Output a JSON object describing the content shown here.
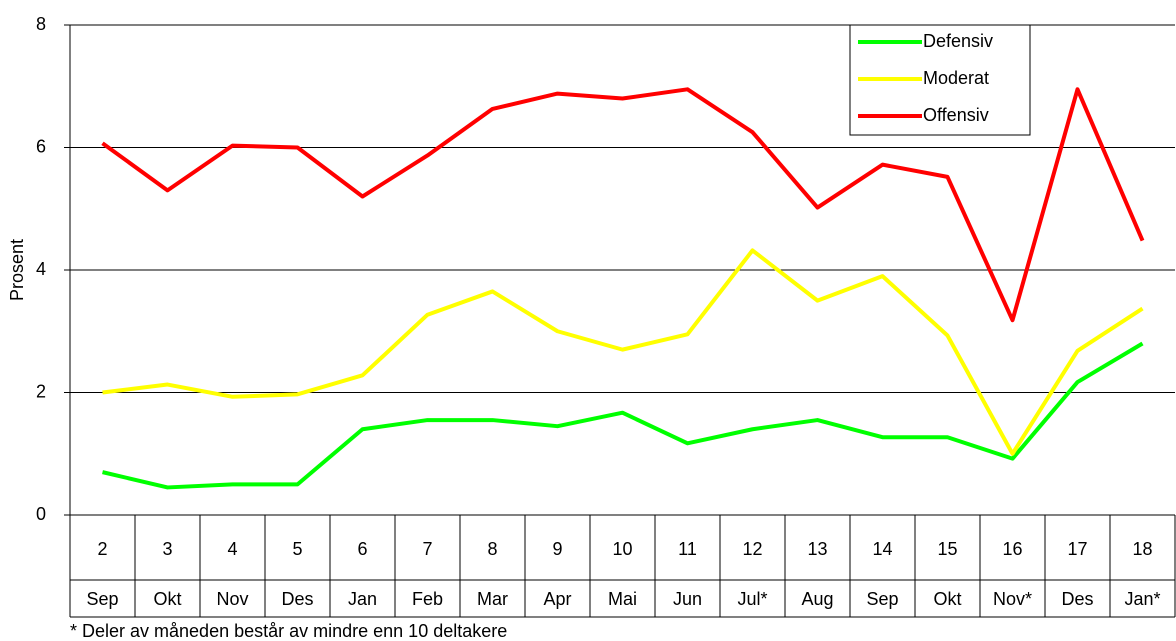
{
  "chart_data": {
    "type": "line",
    "y_label": "Prosent",
    "footnote": "* Deler av måneden består av mindre enn 10 deltakere",
    "categories": [
      "2",
      "3",
      "4",
      "5",
      "6",
      "7",
      "8",
      "9",
      "10",
      "11",
      "12",
      "13",
      "14",
      "15",
      "16",
      "17",
      "18"
    ],
    "category_months": [
      "Sep",
      "Okt",
      "Nov",
      "Des",
      "Jan",
      "Feb",
      "Mar",
      "Apr",
      "Mai",
      "Jun",
      "Jul*",
      "Aug",
      "Sep",
      "Okt",
      "Nov*",
      "Des",
      "Jan*"
    ],
    "ylim": [
      0,
      8
    ],
    "yticks": [
      0,
      2,
      4,
      6,
      8
    ],
    "grid": true,
    "series": [
      {
        "name": "Defensiv",
        "color": "#00ff00",
        "values": [
          0.7,
          0.45,
          0.5,
          0.5,
          1.4,
          1.55,
          1.55,
          1.45,
          1.67,
          1.17,
          1.4,
          1.55,
          1.27,
          1.27,
          0.92,
          2.17,
          2.8
        ]
      },
      {
        "name": "Moderat",
        "color": "#ffff00",
        "values": [
          2.0,
          2.13,
          1.93,
          1.97,
          2.28,
          3.27,
          3.65,
          3.0,
          2.7,
          2.95,
          4.32,
          3.5,
          3.9,
          2.93,
          1.0,
          2.68,
          3.37
        ]
      },
      {
        "name": "Offensiv",
        "color": "#ff0000",
        "values": [
          6.07,
          5.3,
          6.03,
          6.0,
          5.2,
          5.87,
          6.63,
          6.88,
          6.8,
          6.95,
          6.25,
          5.02,
          5.72,
          5.52,
          3.18,
          6.95,
          4.48
        ]
      }
    ]
  }
}
